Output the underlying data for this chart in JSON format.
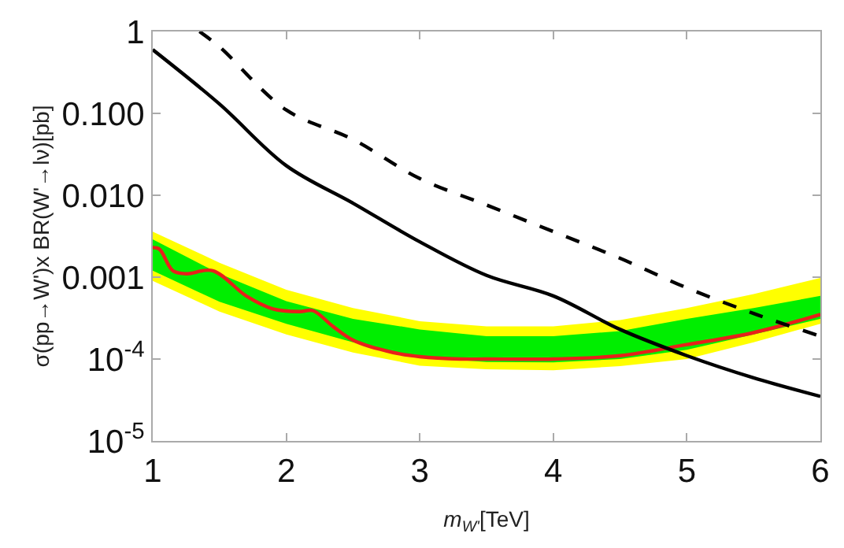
{
  "chart_data": {
    "type": "line",
    "xlabel": "m$_{W'}$[TeV]",
    "ylabel": "σ(pp→W')x BR(W'→lν)[pb]",
    "log": "y",
    "marker": "none",
    "xlim": [
      1,
      6
    ],
    "xticks": [
      1,
      2,
      3,
      4,
      5,
      6
    ],
    "ylim": [
      1e-05,
      1
    ],
    "yticks": [
      1,
      {
        "value": 0.1,
        "label": "0.100"
      },
      {
        "value": 0.01,
        "label": "0.010"
      },
      {
        "value": 0.001,
        "label": "0.001"
      },
      {
        "value": 0.0001,
        "label": "10$^{-4}$"
      },
      {
        "value": 1e-05,
        "label": "10$^{-5}$"
      }
    ],
    "series": [
      {
        "type": "line",
        "color": "#ffff00",
        "x": [
          1,
          1.5,
          2,
          2.5,
          3,
          3.5,
          4,
          4.5,
          5,
          5.5,
          6
        ],
        "values": [
          null,
          null,
          null,
          null,
          null,
          null,
          null,
          null,
          null,
          null,
          null
        ],
        "lower": [
          0.0009,
          0.00038,
          0.0002,
          0.00012,
          8.3e-05,
          7.5e-05,
          7.3e-05,
          8.2e-05,
          0.0001,
          0.00016,
          0.00027
        ],
        "upper": [
          0.0036,
          0.0015,
          0.0007,
          0.00042,
          0.00029,
          0.00025,
          0.00025,
          0.0003,
          0.00042,
          0.00062,
          0.00098
        ]
      },
      {
        "type": "line",
        "color": "#00ee00",
        "x": [
          1,
          1.5,
          2,
          2.5,
          3,
          3.5,
          4,
          4.5,
          5,
          5.5,
          6
        ],
        "values": [
          null,
          null,
          null,
          null,
          null,
          null,
          null,
          null,
          null,
          null,
          null
        ],
        "lower": [
          0.0012,
          0.0005,
          0.00027,
          0.00016,
          0.000105,
          9.2e-05,
          9.1e-05,
          0.0001,
          0.00013,
          0.0002,
          0.00031
        ],
        "upper": [
          0.0029,
          0.0011,
          0.00051,
          0.00031,
          0.00023,
          0.00019,
          0.00019,
          0.00022,
          0.00031,
          0.00042,
          0.00059
        ]
      },
      {
        "type": "line",
        "color": "#e8201a",
        "line_style": "solid",
        "x": [
          1,
          1.05,
          1.15,
          1.25,
          1.45,
          1.7,
          1.9,
          2.1,
          2.2,
          2.35,
          2.5,
          2.8,
          3,
          3.3,
          3.5,
          4,
          4.5,
          5,
          5.5,
          6
        ],
        "values": [
          0.0023,
          0.0022,
          0.0012,
          0.0011,
          0.0012,
          0.00059,
          0.00041,
          0.00038,
          0.00039,
          0.00025,
          0.00017,
          0.00012,
          0.000107,
          0.0001,
          0.0001,
          0.0001,
          0.00011,
          0.00015,
          0.00021,
          0.00035
        ]
      },
      {
        "type": "line",
        "color": "#000000",
        "line_style": "solid",
        "x": [
          1,
          1.5,
          2,
          2.5,
          3,
          3.5,
          4,
          4.5,
          5,
          5.5,
          6
        ],
        "values": [
          0.6,
          0.13,
          0.023,
          0.008,
          0.0027,
          0.00105,
          0.00059,
          0.00023,
          0.00011,
          5.9e-05,
          3.5e-05
        ]
      },
      {
        "type": "line",
        "color": "#000000",
        "line_style": "dashed",
        "x": [
          1.35,
          1.5,
          2,
          2.5,
          3,
          3.5,
          4,
          4.5,
          5,
          5.5,
          6
        ],
        "values": [
          1,
          0.65,
          0.11,
          0.048,
          0.016,
          0.0076,
          0.0036,
          0.0017,
          0.00074,
          0.00036,
          0.00019
        ]
      }
    ]
  }
}
